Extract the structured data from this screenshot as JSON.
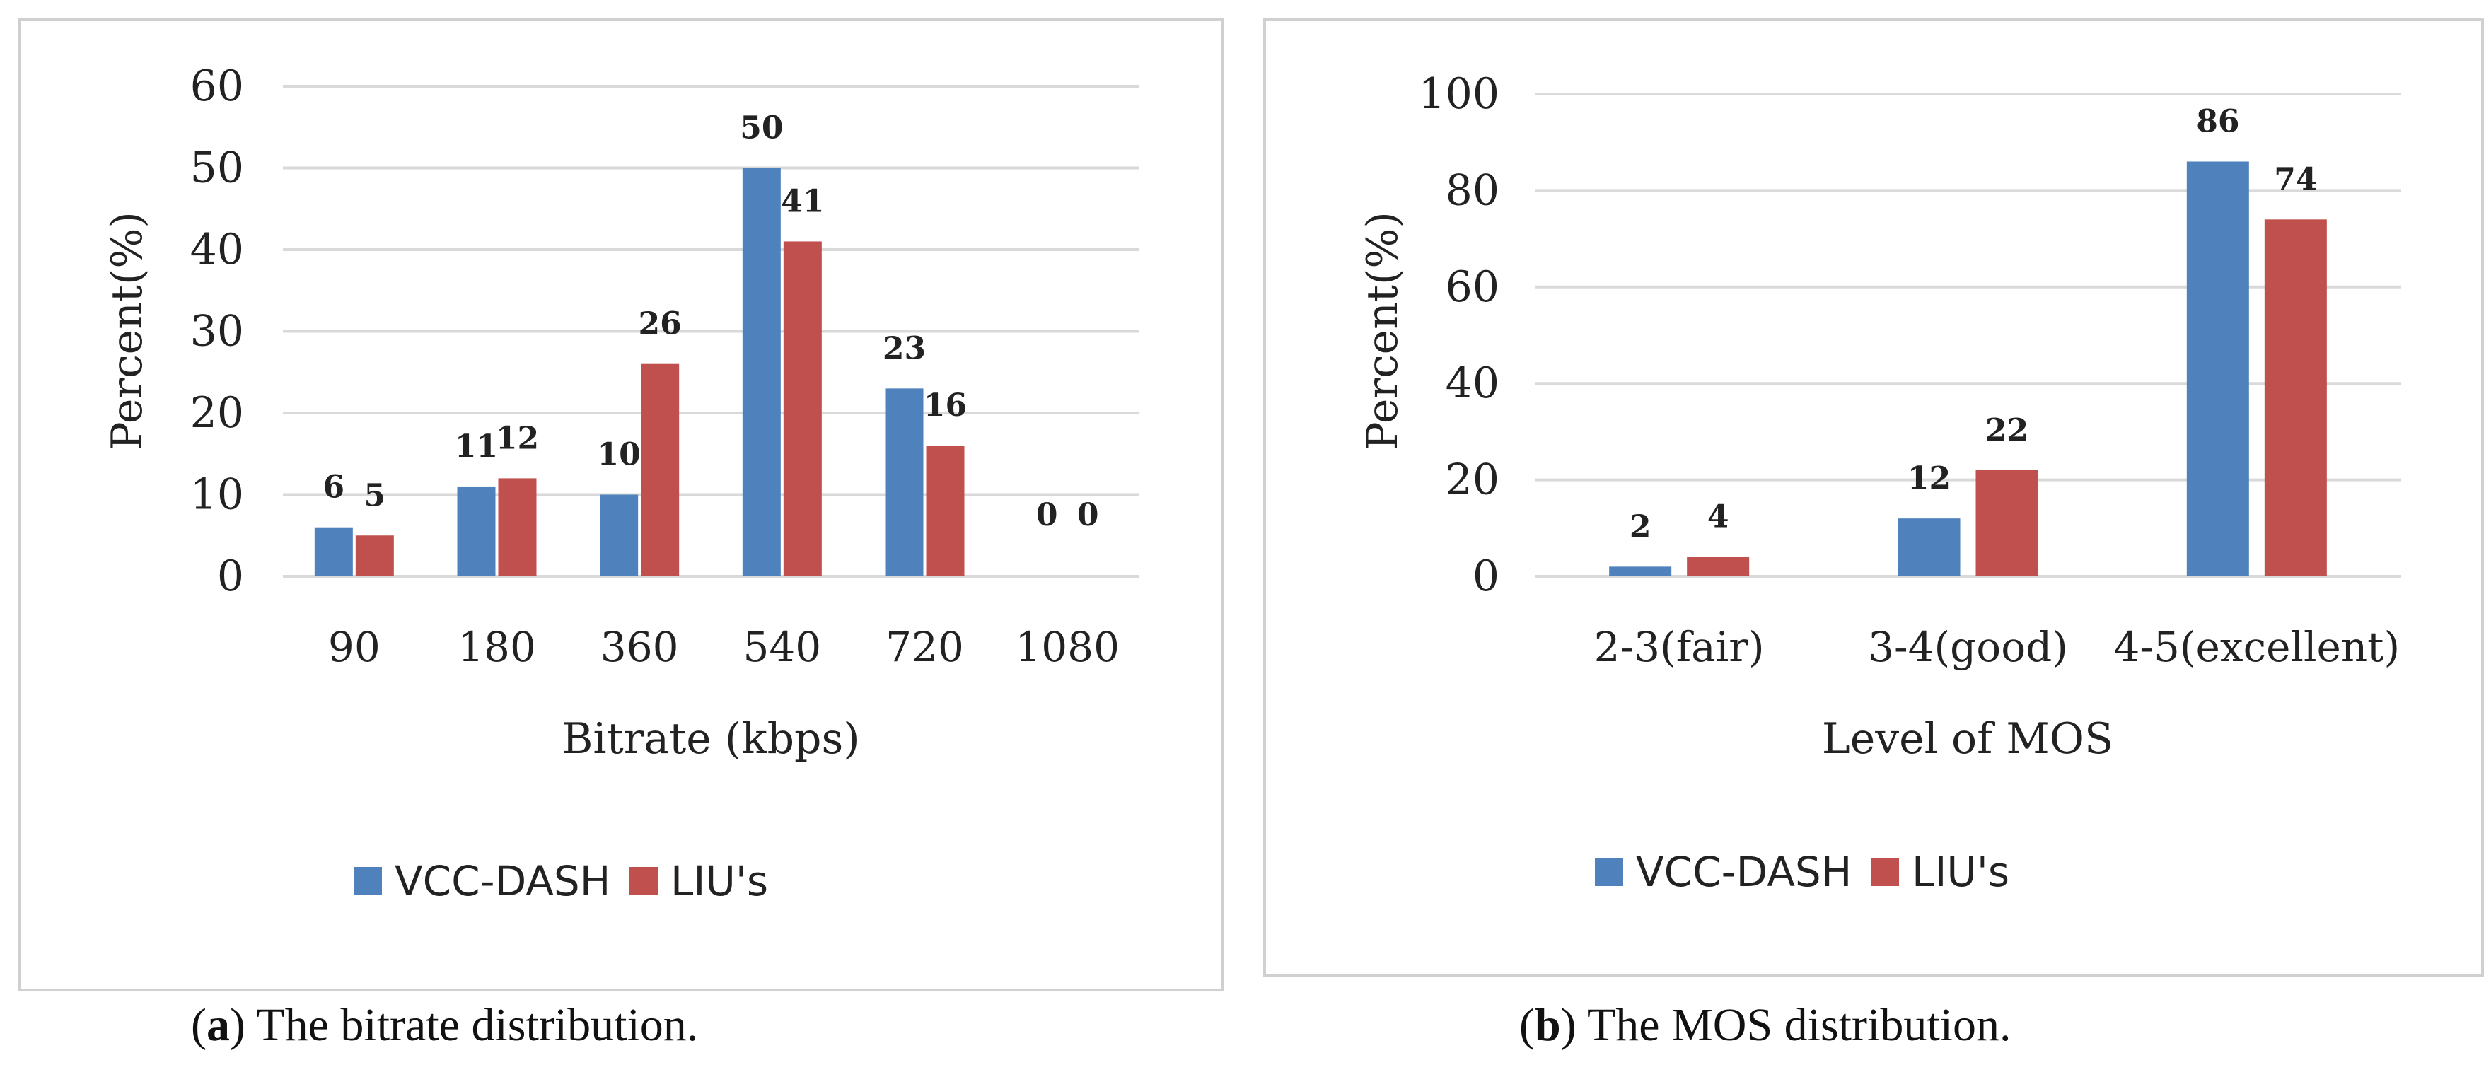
{
  "colors": {
    "vcc": "#4f81bd",
    "liu": "#c0504d",
    "grid": "#d9d9d9",
    "frame": "#d0d0d0"
  },
  "chart_data": [
    {
      "type": "bar",
      "categories": [
        "90",
        "180",
        "360",
        "540",
        "720",
        "1080"
      ],
      "series": [
        {
          "name": "VCC-DASH",
          "values": [
            6,
            11,
            10,
            50,
            23,
            0
          ],
          "color": "#4f81bd"
        },
        {
          "name": "LIU's",
          "values": [
            5,
            12,
            26,
            41,
            16,
            0
          ],
          "color": "#c0504d"
        }
      ],
      "xlabel": "Bitrate (kbps)",
      "ylabel": "Percent(%)",
      "ylim": [
        0,
        60
      ],
      "yticks": [
        "0",
        "10",
        "20",
        "30",
        "40",
        "50",
        "60"
      ],
      "grid": true,
      "legend": "bottom",
      "caption_letter": "a",
      "caption_text": " The bitrate distribution."
    },
    {
      "type": "bar",
      "categories": [
        "2-3(fair)",
        "3-4(good)",
        "4-5(excellent)"
      ],
      "series": [
        {
          "name": "VCC-DASH",
          "values": [
            2,
            12,
            86
          ],
          "color": "#4f81bd"
        },
        {
          "name": "LIU's",
          "values": [
            4,
            22,
            74
          ],
          "color": "#c0504d"
        }
      ],
      "xlabel": "Level of MOS",
      "ylabel": "Percent(%)",
      "ylim": [
        0,
        100
      ],
      "yticks": [
        "0",
        "20",
        "40",
        "60",
        "80",
        "100"
      ],
      "grid": true,
      "legend": "bottom",
      "caption_letter": "b",
      "caption_text": " The MOS distribution."
    }
  ]
}
